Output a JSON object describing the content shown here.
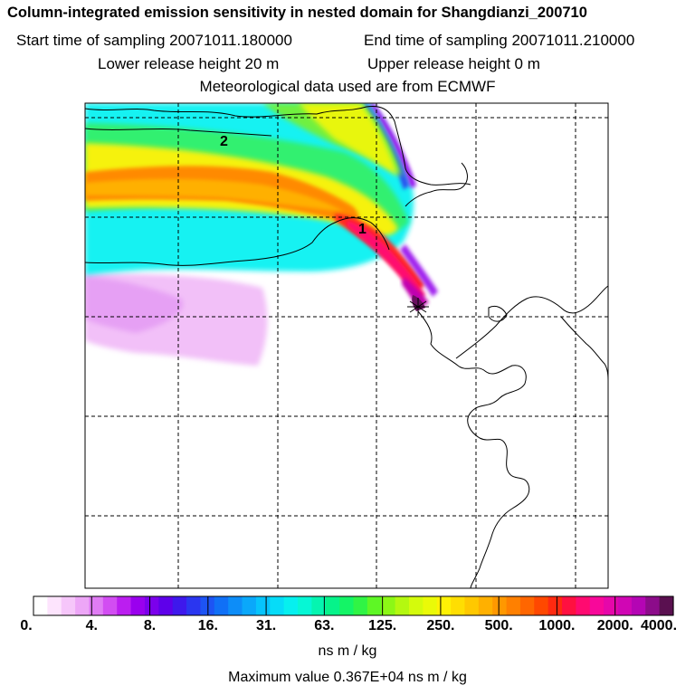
{
  "header": {
    "title": "Column-integrated emission sensitivity in nested domain for Shangdianzi_200710",
    "start_label": "Start time of sampling 20071011.180000",
    "end_label": "End time of sampling 20071011.210000",
    "lower_label": "Lower release height   20 m",
    "upper_label": "Upper release height    0 m",
    "met_label": "Meteorological data used are from ECMWF"
  },
  "chart_data": {
    "type": "heatmap",
    "title": "Column-integrated emission sensitivity in nested domain for Shangdianzi_200710",
    "colorbar": {
      "tick_labels": [
        "0.",
        "4.",
        "8.",
        "16.",
        "31.",
        "63.",
        "125.",
        "250.",
        "500.",
        "1000.",
        "2000.",
        "4000."
      ],
      "units": "ns m / kg",
      "colors": [
        "#ffffff",
        "#fde4fd",
        "#f6c6fa",
        "#eda6f7",
        "#e07cf4",
        "#d24df2",
        "#bb1ef0",
        "#9a00ee",
        "#7b00ec",
        "#5e00ea",
        "#3e18ec",
        "#2a36f0",
        "#1d54f4",
        "#1070f6",
        "#0d8df8",
        "#0aa8fa",
        "#06c4fc",
        "#06dcf8",
        "#06f0ef",
        "#06f7d5",
        "#05f5b0",
        "#06f38a",
        "#14f466",
        "#30f445",
        "#5ef725",
        "#8cf716",
        "#b4f810",
        "#d4fb0c",
        "#eafa08",
        "#fff205",
        "#ffde02",
        "#ffc800",
        "#ffb000",
        "#ff9800",
        "#ff8000",
        "#ff6600",
        "#ff4800",
        "#ff2a10",
        "#ff1040",
        "#ff0a70",
        "#f8089a",
        "#e607aa",
        "#d006b4",
        "#b405b4",
        "#8c0c8a",
        "#5a1050"
      ]
    },
    "map_labels": [
      "1",
      "2"
    ],
    "station_marker": "receptor-star",
    "max_value": 3670
  },
  "footer": {
    "units": "ns m / kg",
    "max_value_label": "Maximum value  0.367E+04 ns m / kg"
  }
}
